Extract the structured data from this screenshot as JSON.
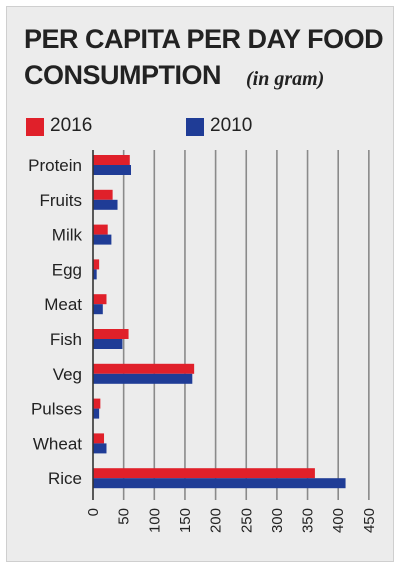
{
  "title_line1": "PER CAPITA PER DAY FOOD",
  "title_line2": "CONSUMPTION",
  "unit_label": "(in gram)",
  "chart_data": {
    "type": "bar",
    "orientation": "horizontal",
    "categories": [
      "Protein",
      "Fruits",
      "Milk",
      "Egg",
      "Meat",
      "Fish",
      "Veg",
      "Pulses",
      "Wheat",
      "Rice"
    ],
    "series": [
      {
        "name": "2016",
        "color": "#e0202a",
        "values": [
          60,
          32,
          24,
          10,
          22,
          58,
          165,
          12,
          18,
          362
        ]
      },
      {
        "name": "2010",
        "color": "#1f3c96",
        "values": [
          62,
          40,
          30,
          6,
          16,
          48,
          162,
          10,
          22,
          412
        ]
      }
    ],
    "xticks": [
      "0",
      "50",
      "100",
      "150",
      "200",
      "250",
      "300",
      "350",
      "400",
      "450"
    ],
    "xlim": [
      0,
      450
    ],
    "grid": true,
    "legend": "top"
  }
}
